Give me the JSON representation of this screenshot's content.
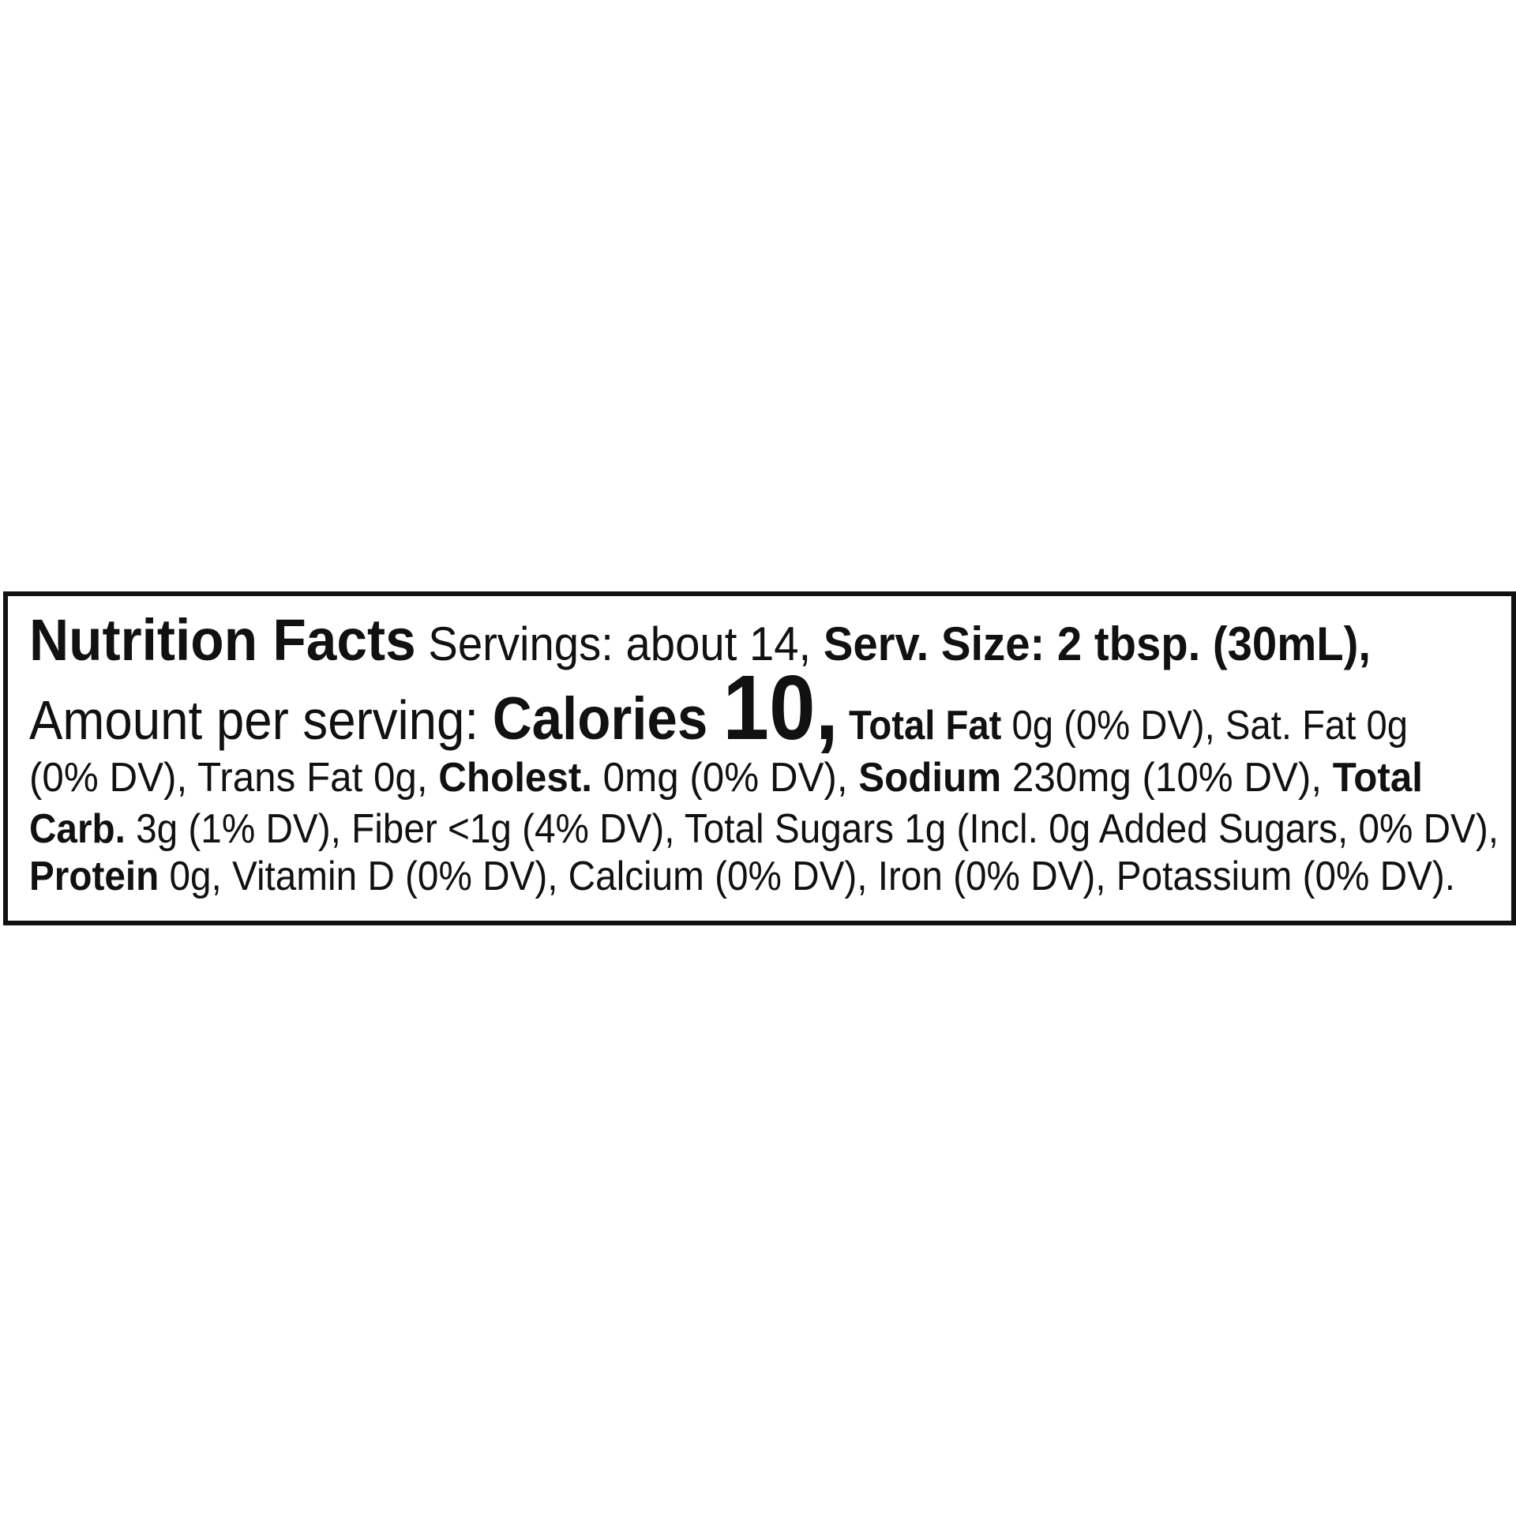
{
  "label": {
    "title": "Nutrition Facts",
    "lines": [
      [
        {
          "text": "Nutrition Facts",
          "bold": true,
          "size": "title"
        },
        {
          "text": " Servings: about 14, ",
          "bold": false,
          "size": "lead"
        },
        {
          "text": "Serv. Size: 2 tbsp. (30mL),",
          "bold": true,
          "size": "lead"
        }
      ],
      [
        {
          "text": "Amount per serving: ",
          "bold": false,
          "size": "amount"
        },
        {
          "text": "Calories ",
          "bold": true,
          "size": "calories"
        },
        {
          "text": "10,",
          "bold": true,
          "size": "calnum"
        },
        {
          "text": " Total Fat",
          "bold": true,
          "size": "body"
        },
        {
          "text": " 0g (0% DV), Sat. Fat 0g",
          "bold": false,
          "size": "body"
        }
      ],
      [
        {
          "text": "(0% DV), Trans Fat 0g, ",
          "bold": false,
          "size": "body"
        },
        {
          "text": "Cholest.",
          "bold": true,
          "size": "body"
        },
        {
          "text": " 0mg (0% DV), ",
          "bold": false,
          "size": "body"
        },
        {
          "text": "Sodium",
          "bold": true,
          "size": "body"
        },
        {
          "text": " 230mg (10% DV), ",
          "bold": false,
          "size": "body"
        },
        {
          "text": "Total",
          "bold": true,
          "size": "body"
        }
      ],
      [
        {
          "text": "Carb.",
          "bold": true,
          "size": "body"
        },
        {
          "text": " 3g (1% DV), Fiber <1g (4% DV), Total Sugars 1g (Incl. 0g Added Sugars, 0% DV),",
          "bold": false,
          "size": "body"
        }
      ],
      [
        {
          "text": "Protein",
          "bold": true,
          "size": "body"
        },
        {
          "text": " 0g, Vitamin D (0% DV), Calcium (0% DV), Iron (0% DV), Potassium (0% DV).",
          "bold": false,
          "size": "body"
        }
      ]
    ]
  },
  "colors": {
    "text": "#111111",
    "border": "#111111",
    "background": "#ffffff"
  }
}
